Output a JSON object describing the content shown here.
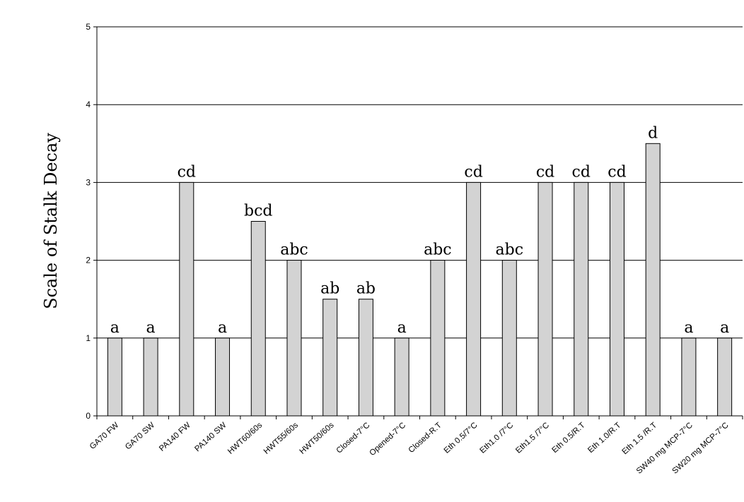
{
  "chart_data": {
    "type": "bar",
    "title": "",
    "xlabel": "",
    "ylabel": "Scale of Stalk Decay",
    "ylim": [
      0,
      5
    ],
    "yticks": [
      0,
      1,
      2,
      3,
      4,
      5
    ],
    "grid": true,
    "legend": "none",
    "bar_color": "#d3d3d3",
    "categories": [
      "GA70 FW",
      "GA70 SW",
      "PA140 FW",
      "PA140 SW",
      "HWT60/60s",
      "HWT55/60s",
      "HWT50/60s",
      "Closed-7°C",
      "Opened-7°C",
      "Closed-R.T",
      "Eth 0.5/7°C",
      "Eth1.0 /7°C",
      "Eth1.5 /7°C",
      "Eth 0.5/R.T",
      "Eth 1.0/R.T",
      "Eth 1.5 /R.T",
      "SW40 mg MCP-7°C",
      "SW20 mg MCP-7°C"
    ],
    "values": [
      1,
      1,
      3,
      1,
      2.5,
      2,
      1.5,
      1.5,
      1,
      2,
      3,
      2,
      3,
      3,
      3,
      3.5,
      1,
      1
    ],
    "data_labels": [
      "a",
      "a",
      "cd",
      "a",
      "bcd",
      "abc",
      "ab",
      "ab",
      "a",
      "abc",
      "cd",
      "abc",
      "cd",
      "cd",
      "cd",
      "d",
      "a",
      "a"
    ]
  }
}
